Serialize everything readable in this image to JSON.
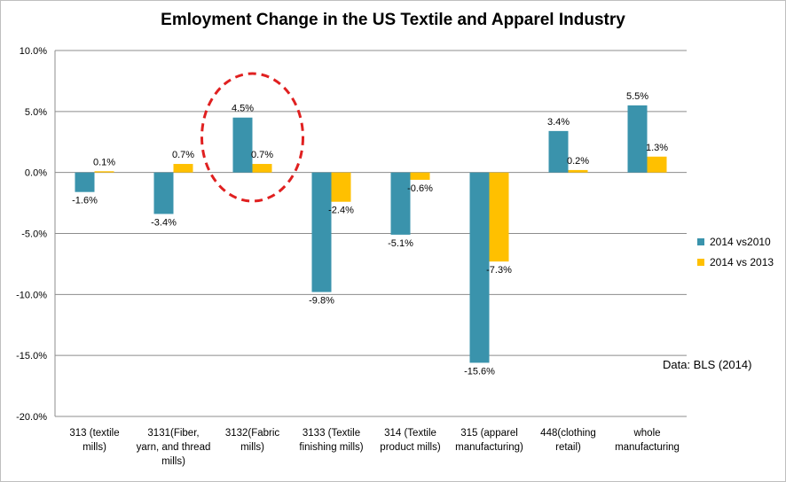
{
  "chart_data": {
    "type": "bar",
    "title": "Emloyment Change in the US Textile and Apparel Industry",
    "categories": [
      [
        "313 (textile",
        "mills)"
      ],
      [
        "3131(Fiber,",
        "yarn, and thread",
        "mills)"
      ],
      [
        "3132(Fabric",
        "mills)"
      ],
      [
        "3133 (Textile",
        "finishing mills)"
      ],
      [
        "314 (Textile",
        "product mills)"
      ],
      [
        "315 (apparel",
        "manufacturing)"
      ],
      [
        "448(clothing",
        "retail)"
      ],
      [
        "whole",
        "manufacturing"
      ]
    ],
    "series": [
      {
        "name": "2014 vs2010",
        "color": "#3A93AC",
        "values": [
          -1.6,
          -3.4,
          4.5,
          -9.8,
          -5.1,
          -15.6,
          3.4,
          5.5
        ],
        "labels": [
          "-1.6%",
          "-3.4%",
          "4.5%",
          "-9.8%",
          "-5.1%",
          "-15.6%",
          "3.4%",
          "5.5%"
        ]
      },
      {
        "name": "2014 vs 2013",
        "color": "#FFC000",
        "values": [
          0.1,
          0.7,
          0.7,
          -2.4,
          -0.6,
          -7.3,
          0.2,
          1.3
        ],
        "labels": [
          "0.1%",
          "0.7%",
          "0.7%",
          "-2.4%",
          "-0.6%",
          "-7.3%",
          "0.2%",
          "1.3%"
        ]
      }
    ],
    "ylim": [
      -20,
      10
    ],
    "yticks": [
      10,
      5,
      0,
      -5,
      -10,
      -15,
      -20
    ],
    "ytick_labels": [
      "10.0%",
      "5.0%",
      "0.0%",
      "-5.0%",
      "-10.0%",
      "-15.0%",
      "-20.0%"
    ],
    "grid": true,
    "legend_position": "right",
    "annotation": "Data: BLS (2014)",
    "highlight": {
      "category_index": 2,
      "shape": "dashed-ellipse",
      "color": "#E02020"
    }
  }
}
